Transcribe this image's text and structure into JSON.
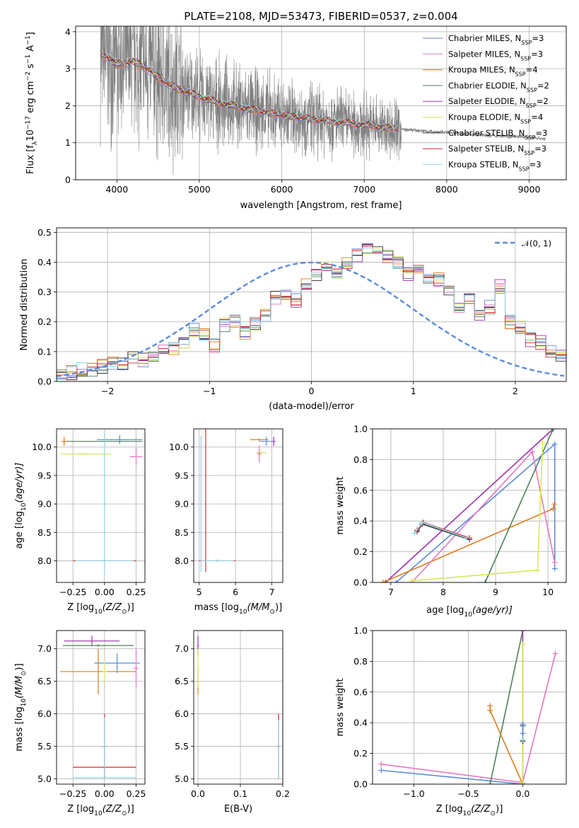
{
  "colors": {
    "Chabrier MILES": "#5b8bd9",
    "Salpeter MILES": "#e377c2",
    "Kroupa MILES": "#e07b1a",
    "Chabrier ELODIE": "#4f7f5a",
    "Salpeter ELODIE": "#9b2fb0",
    "Kroupa ELODIE": "#d6e85a",
    "Chabrier STELIB": "#333333",
    "Salpeter STELIB": "#d62728",
    "Kroupa STELIB": "#8ed6e8",
    "data": "#808080",
    "gaussian": "#5b8bd9"
  },
  "chart_data": [
    {
      "id": "spectrum",
      "type": "line",
      "title": "PLATE=2108, MJD=53473, FIBERID=0537, z=0.004",
      "xlabel": "wavelength [Angstrom, rest frame]",
      "ylabel": "Flux [f",
      "ylabel_sub": "λ",
      "ylabel_rest": "10",
      "ylabel_exp1": "−17",
      "ylabel_mid": " erg cm",
      "ylabel_exp2": "−2",
      "ylabel_s": " s",
      "ylabel_exp3": "−1",
      "ylabel_end": " A",
      "ylabel_exp4": "−1",
      "ylabel_close": "]",
      "xlim": [
        3500,
        9450
      ],
      "ylim": [
        0,
        4.15
      ],
      "xticks": [
        4000,
        5000,
        6000,
        7000,
        8000,
        9000
      ],
      "yticks": [
        0,
        1,
        2,
        3,
        4
      ],
      "legend_position": "top-right",
      "data_range": [
        3800,
        9200
      ],
      "model_range": [
        3800,
        7420
      ],
      "legend": [
        {
          "base": "Chabrier MILES, N",
          "sub": "SSP",
          "end": "=3"
        },
        {
          "base": "Salpeter MILES, N",
          "sub": "SSP",
          "end": "=3"
        },
        {
          "base": "Kroupa MILES, N",
          "sub": "SSP",
          "end": "=4"
        },
        {
          "base": "Chabrier ELODIE, N",
          "sub": "SSP",
          "end": "=2"
        },
        {
          "base": "Salpeter ELODIE, N",
          "sub": "SSP",
          "end": "=2"
        },
        {
          "base": "Kroupa ELODIE, N",
          "sub": "SSP",
          "end": "=4"
        },
        {
          "base": "Chabrier STELIB, N",
          "sub": "SSP",
          "end": "=3"
        },
        {
          "base": "Salpeter STELIB, N",
          "sub": "SSP",
          "end": "=3"
        },
        {
          "base": "Kroupa STELIB, N",
          "sub": "SSP",
          "end": "=3"
        }
      ],
      "continuum": [
        [
          3800,
          3.4
        ],
        [
          3900,
          3.3
        ],
        [
          4000,
          3.1
        ],
        [
          4200,
          3.2
        ],
        [
          4400,
          2.95
        ],
        [
          4600,
          2.6
        ],
        [
          4800,
          2.4
        ],
        [
          5000,
          2.25
        ],
        [
          5200,
          2.1
        ],
        [
          5500,
          1.95
        ],
        [
          6000,
          1.75
        ],
        [
          6500,
          1.6
        ],
        [
          7000,
          1.48
        ],
        [
          7500,
          1.35
        ],
        [
          8000,
          1.28
        ],
        [
          8500,
          1.2
        ],
        [
          9000,
          1.15
        ],
        [
          9200,
          1.1
        ]
      ]
    },
    {
      "id": "residuals",
      "type": "line",
      "xlabel": "(data-model)/error",
      "ylabel": "Normed distribution",
      "xlim": [
        -2.5,
        2.5
      ],
      "ylim": [
        0,
        0.515
      ],
      "xticks": [
        -2,
        -1,
        0,
        1,
        2
      ],
      "xtick_labels": [
        "−2",
        "−1",
        "0",
        "1",
        "2"
      ],
      "yticks": [
        0.0,
        0.1,
        0.2,
        0.3,
        0.4,
        0.5
      ],
      "ytick_labels": [
        "0.0",
        "0.1",
        "0.2",
        "0.3",
        "0.4",
        "0.5"
      ],
      "legend_label": "𝒩(0, 1)",
      "legend_position": "top-right",
      "bin_width": 0.1,
      "bin_start": -2.5,
      "hist": [
        0.02,
        0.03,
        0.04,
        0.04,
        0.05,
        0.06,
        0.06,
        0.08,
        0.07,
        0.09,
        0.1,
        0.11,
        0.13,
        0.17,
        0.16,
        0.12,
        0.19,
        0.2,
        0.16,
        0.19,
        0.22,
        0.28,
        0.29,
        0.27,
        0.32,
        0.36,
        0.38,
        0.36,
        0.4,
        0.42,
        0.44,
        0.43,
        0.42,
        0.4,
        0.36,
        0.38,
        0.34,
        0.34,
        0.3,
        0.25,
        0.28,
        0.22,
        0.25,
        0.32,
        0.2,
        0.18,
        0.14,
        0.13,
        0.1,
        0.09,
        0.06
      ]
    },
    {
      "id": "age-vs-Z",
      "type": "scatter",
      "xlabel": "Z [log",
      "xlabel_sub": "10",
      "xlabel_end": "(Z/Z",
      "xlabel_sun": "⊙",
      "xlabel_close": ")]",
      "ylabel": "age  [log",
      "ylabel_sub": "10",
      "ylabel_end": "(age/yr)]",
      "xlim": [
        -0.38,
        0.32
      ],
      "ylim": [
        7.62,
        10.32
      ],
      "xticks": [
        -0.25,
        0.0,
        0.25
      ],
      "xtick_labels": [
        "−0.25",
        "0.00",
        "0.25"
      ],
      "yticks": [
        8.0,
        8.5,
        9.0,
        9.5,
        10.0
      ],
      "ytick_labels": [
        "8.0",
        "8.5",
        "9.0",
        "9.5",
        "10.0"
      ],
      "crosses": [
        {
          "model": "Kroupa MILES",
          "x": -0.32,
          "y": 10.1,
          "xerr": 0.02,
          "yerr": 0.08
        },
        {
          "model": "Chabrier MILES",
          "x": 0.12,
          "y": 10.13,
          "xerr": 0.18,
          "yerr": 0.08
        },
        {
          "model": "Chabrier ELODIE",
          "x": 0.0,
          "y": 10.1,
          "xerr": 0.3,
          "yerr": 0.02
        },
        {
          "model": "Kroupa ELODIE",
          "x": -0.15,
          "y": 9.88,
          "xerr": 0.2,
          "yerr": 0.02
        },
        {
          "model": "Salpeter MILES",
          "x": 0.25,
          "y": 9.83,
          "xerr": 0.05,
          "yerr": 0.15
        },
        {
          "model": "Salpeter STELIB",
          "x": 0.0,
          "y": 8.0,
          "xerr": 0.25,
          "yerr": 0.02
        },
        {
          "model": "Kroupa STELIB",
          "x": 0.0,
          "y": 9.0,
          "xerr": 0.02,
          "yerr": 1.25
        },
        {
          "model": "Kroupa STELIB",
          "x": 0.0,
          "y": 8.0,
          "xerr": 0.23,
          "yerr": 0.02
        }
      ]
    },
    {
      "id": "age-vs-mass",
      "type": "scatter",
      "xlabel": "mass [log",
      "xlabel_sub": "10",
      "xlabel_end": "(M/M",
      "xlabel_sun": "⊙",
      "xlabel_close": ")]",
      "xlim": [
        4.85,
        7.3
      ],
      "ylim": [
        7.62,
        10.32
      ],
      "xticks": [
        5,
        6,
        7
      ],
      "xtick_labels": [
        "5",
        "6",
        "7"
      ],
      "yticks": [
        8.0,
        8.5,
        9.0,
        9.5,
        10.0
      ],
      "ytick_labels": [
        "8.0",
        "8.5",
        "9.0",
        "9.5",
        "10.0"
      ],
      "crosses": [
        {
          "model": "Kroupa MILES",
          "x": 6.65,
          "y": 10.13,
          "xerr": 0.25,
          "yerr": 0.02
        },
        {
          "model": "Salpeter ELODIE",
          "x": 7.05,
          "y": 10.1,
          "xerr": 0.05,
          "yerr": 0.08
        },
        {
          "model": "Chabrier MILES",
          "x": 6.85,
          "y": 10.1,
          "xerr": 0.2,
          "yerr": 0.08
        },
        {
          "model": "Kroupa ELODIE",
          "x": 6.7,
          "y": 9.9,
          "xerr": 0.15,
          "yerr": 0.05
        },
        {
          "model": "Salpeter MILES",
          "x": 6.65,
          "y": 9.88,
          "xerr": 0.05,
          "yerr": 0.15
        },
        {
          "model": "Salpeter STELIB",
          "x": 5.18,
          "y": 9.1,
          "xerr": 0.01,
          "yerr": 1.3
        },
        {
          "model": "Salpeter STELIB",
          "x": 5.5,
          "y": 8.0,
          "xerr": 0.5,
          "yerr": 0.02
        },
        {
          "model": "Kroupa STELIB",
          "x": 5.05,
          "y": 9.0,
          "xerr": 0.02,
          "yerr": 1.2
        },
        {
          "model": "Kroupa STELIB",
          "x": 5.5,
          "y": 8.0,
          "xerr": 0.45,
          "yerr": 0.02
        }
      ]
    },
    {
      "id": "weight-vs-age",
      "type": "line",
      "xlabel": "age  [log",
      "xlabel_sub": "10",
      "xlabel_end": "(age/yr)]",
      "ylabel": "mass weight",
      "xlim": [
        6.65,
        10.35
      ],
      "ylim": [
        0,
        1.0
      ],
      "xticks": [
        7,
        8,
        9,
        10
      ],
      "xtick_labels": [
        "7",
        "8",
        "9",
        "10"
      ],
      "yticks": [
        0.0,
        0.2,
        0.4,
        0.6,
        0.8,
        1.0
      ],
      "ytick_labels": [
        "0.0",
        "0.2",
        "0.4",
        "0.6",
        "0.8",
        "1.0"
      ],
      "series": [
        {
          "model": "Salpeter ELODIE",
          "points": [
            [
              6.9,
              0.0
            ],
            [
              10.1,
              1.0
            ]
          ]
        },
        {
          "model": "Chabrier MILES",
          "points": [
            [
              7.1,
              0.0
            ],
            [
              10.13,
              0.9
            ],
            [
              10.13,
              0.09
            ]
          ]
        },
        {
          "model": "Kroupa MILES",
          "points": [
            [
              6.85,
              0.0
            ],
            [
              10.1,
              0.48
            ],
            [
              10.12,
              0.51
            ]
          ]
        },
        {
          "model": "Salpeter MILES",
          "points": [
            [
              7.4,
              0.0
            ],
            [
              9.7,
              0.85
            ],
            [
              10.13,
              0.13
            ]
          ]
        },
        {
          "model": "Chabrier ELODIE",
          "points": [
            [
              8.8,
              0.0
            ],
            [
              10.1,
              1.0
            ]
          ]
        },
        {
          "model": "Kroupa ELODIE",
          "points": [
            [
              7.4,
              0.01
            ],
            [
              9.8,
              0.08
            ],
            [
              9.9,
              0.91
            ]
          ]
        },
        {
          "model": "Chabrier STELIB",
          "points": [
            [
              7.5,
              0.33
            ],
            [
              7.6,
              0.38
            ],
            [
              8.5,
              0.28
            ]
          ]
        },
        {
          "model": "Salpeter STELIB",
          "points": [
            [
              7.5,
              0.34
            ],
            [
              7.62,
              0.39
            ],
            [
              8.5,
              0.29
            ]
          ]
        },
        {
          "model": "Kroupa STELIB",
          "points": [
            [
              7.45,
              0.32
            ],
            [
              7.6,
              0.39
            ],
            [
              8.45,
              0.29
            ]
          ]
        }
      ]
    },
    {
      "id": "mass-vs-Z",
      "type": "scatter",
      "xlabel": "Z [log",
      "xlabel_sub": "10",
      "xlabel_end": "(Z/Z",
      "xlabel_sun": "⊙",
      "xlabel_close": ")]",
      "ylabel": "mass [log",
      "ylabel_sub": "10",
      "ylabel_end": "(M/M",
      "ylabel_sun": "⊙",
      "ylabel_close": ")]",
      "xlim": [
        -0.38,
        0.32
      ],
      "ylim": [
        4.92,
        7.28
      ],
      "xticks": [
        -0.25,
        0.0,
        0.25
      ],
      "xtick_labels": [
        "−0.25",
        "0.00",
        "0.25"
      ],
      "yticks": [
        5.0,
        5.5,
        6.0,
        6.5,
        7.0
      ],
      "ytick_labels": [
        "5.0",
        "5.5",
        "6.0",
        "6.5",
        "7.0"
      ],
      "crosses": [
        {
          "model": "Salpeter ELODIE",
          "x": -0.1,
          "y": 7.12,
          "xerr": 0.22,
          "yerr": 0.08
        },
        {
          "model": "Chabrier ELODIE",
          "x": -0.05,
          "y": 7.05,
          "xerr": 0.28,
          "yerr": 0.02
        },
        {
          "model": "Chabrier MILES",
          "x": 0.1,
          "y": 6.78,
          "xerr": 0.18,
          "yerr": 0.15
        },
        {
          "model": "Kroupa MILES",
          "x": -0.05,
          "y": 6.65,
          "xerr": 0.3,
          "yerr": 0.35
        },
        {
          "model": "Salpeter MILES",
          "x": 0.25,
          "y": 6.7,
          "xerr": 0.02,
          "yerr": 0.3
        },
        {
          "model": "Kroupa ELODIE",
          "x": 0.0,
          "y": 6.65,
          "xerr": 0.02,
          "yerr": 0.15
        },
        {
          "model": "Salpeter STELIB",
          "x": 0.0,
          "y": 5.5,
          "xerr": 0.02,
          "yerr": 0.5
        },
        {
          "model": "Salpeter STELIB",
          "x": 0.0,
          "y": 5.18,
          "xerr": 0.25,
          "yerr": 0.02
        },
        {
          "model": "Kroupa STELIB",
          "x": 0.0,
          "y": 5.5,
          "xerr": 0.02,
          "yerr": 0.45
        },
        {
          "model": "Kroupa STELIB",
          "x": 0.0,
          "y": 5.02,
          "xerr": 0.25,
          "yerr": 0.02
        }
      ]
    },
    {
      "id": "mass-vs-ebv",
      "type": "scatter",
      "xlabel": "E(B-V)",
      "xlim": [
        -0.01,
        0.2
      ],
      "ylim": [
        4.92,
        7.28
      ],
      "xticks": [
        0.0,
        0.1,
        0.2
      ],
      "xtick_labels": [
        "0.0",
        "0.1",
        "0.2"
      ],
      "yticks": [
        5.0,
        5.5,
        6.0,
        6.5,
        7.0
      ],
      "ytick_labels": [
        "5.0",
        "5.5",
        "6.0",
        "6.5",
        "7.0"
      ],
      "crosses": [
        {
          "model": "Salpeter ELODIE",
          "x": 0.0,
          "y": 7.05,
          "xerr": 0.002,
          "yerr": 0.15
        },
        {
          "model": "Kroupa MILES",
          "x": 0.0,
          "y": 6.5,
          "xerr": 0.002,
          "yerr": 0.2
        },
        {
          "model": "Kroupa ELODIE",
          "x": 0.0,
          "y": 6.7,
          "xerr": 0.002,
          "yerr": 0.3
        },
        {
          "model": "Salpeter STELIB",
          "x": 0.19,
          "y": 5.5,
          "xerr": 0.002,
          "yerr": 0.5
        },
        {
          "model": "Kroupa STELIB",
          "x": 0.19,
          "y": 5.45,
          "xerr": 0.002,
          "yerr": 0.45
        }
      ]
    },
    {
      "id": "weight-vs-Z",
      "type": "line",
      "xlabel": "Z [log",
      "xlabel_sub": "10",
      "xlabel_end": "(Z/Z",
      "xlabel_sun": "⊙",
      "xlabel_close": ")]",
      "ylabel": "mass weight",
      "xlim": [
        -1.38,
        0.4
      ],
      "ylim": [
        0,
        1.0
      ],
      "xticks": [
        -1.0,
        -0.5,
        0.0
      ],
      "xtick_labels": [
        "−1.0",
        "−0.5",
        "0.0"
      ],
      "yticks": [
        0.0,
        0.2,
        0.4,
        0.6,
        0.8,
        1.0
      ],
      "ytick_labels": [
        "0.0",
        "0.2",
        "0.4",
        "0.6",
        "0.8",
        "1.0"
      ],
      "series": [
        {
          "model": "Salpeter MILES",
          "points": [
            [
              -1.3,
              0.13
            ],
            [
              0.0,
              0.01
            ],
            [
              0.3,
              0.85
            ]
          ]
        },
        {
          "model": "Chabrier MILES",
          "points": [
            [
              -1.3,
              0.09
            ],
            [
              0.0,
              0.0
            ]
          ]
        },
        {
          "model": "Chabrier ELODIE",
          "points": [
            [
              -0.3,
              0.0
            ],
            [
              0.0,
              1.0
            ]
          ]
        },
        {
          "model": "Salpeter ELODIE",
          "points": [
            [
              0.0,
              0.0
            ],
            [
              0.0,
              1.0
            ]
          ]
        },
        {
          "model": "Kroupa MILES",
          "points": [
            [
              -0.3,
              0.51
            ],
            [
              -0.3,
              0.48
            ],
            [
              0.0,
              0.0
            ]
          ]
        },
        {
          "model": "Kroupa ELODIE",
          "points": [
            [
              0.0,
              0.01
            ],
            [
              0.0,
              0.91
            ]
          ]
        },
        {
          "model": "Chabrier STELIB",
          "points": [
            [
              0.0,
              0.28
            ],
            [
              0.0,
              0.38
            ]
          ]
        },
        {
          "model": "Kroupa STELIB",
          "points": [
            [
              0.0,
              0.29
            ],
            [
              0.0,
              0.39
            ]
          ]
        },
        {
          "model": "Chabrier MILES",
          "points": [
            [
              0.0,
              0.33
            ],
            [
              0.0,
              0.39
            ]
          ]
        }
      ]
    }
  ]
}
